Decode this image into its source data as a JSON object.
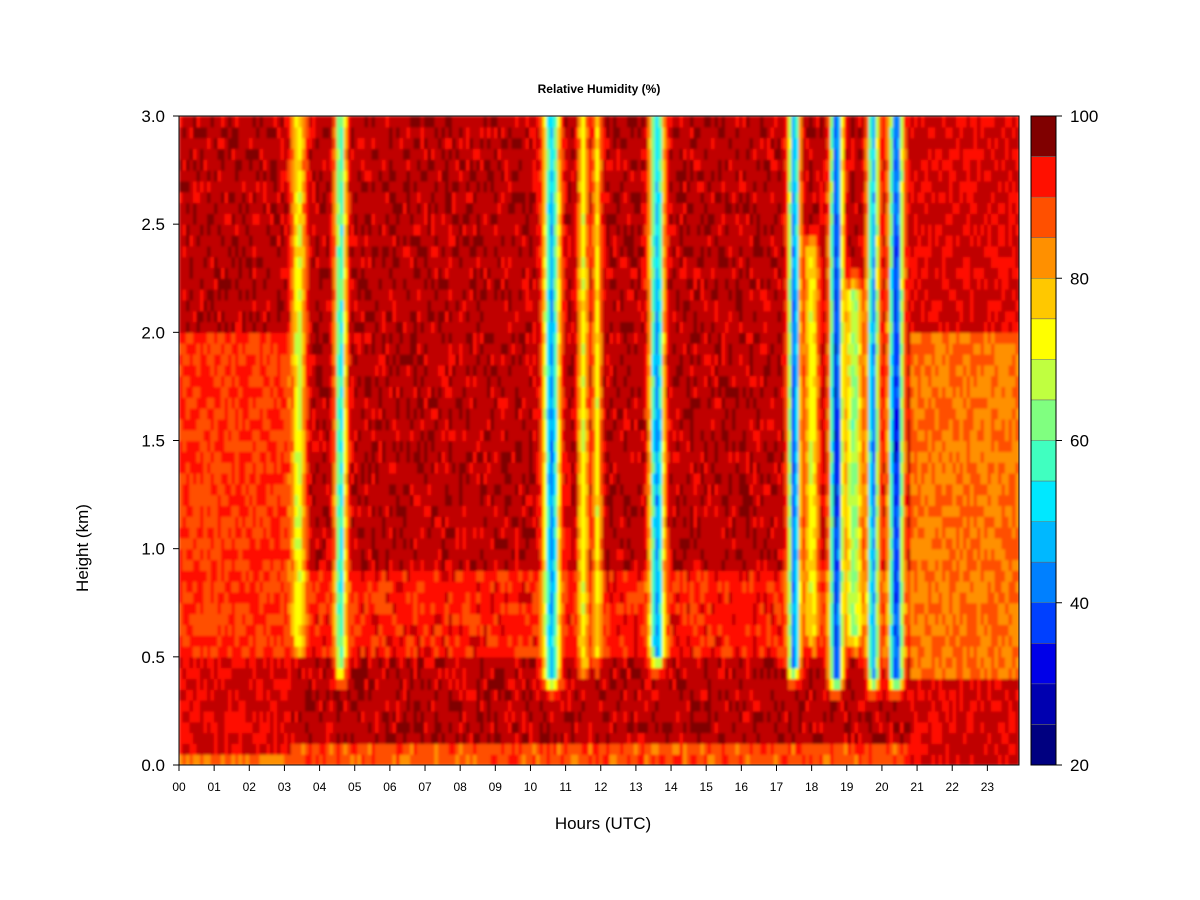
{
  "chart_data": {
    "type": "heatmap",
    "title": "Relative Humidity (%)",
    "xlabel": "Hours (UTC)",
    "ylabel": "Height (km)",
    "xlim": [
      0,
      23.9
    ],
    "ylim": [
      0.0,
      3.0
    ],
    "x_ticks": [
      "00",
      "01",
      "02",
      "03",
      "04",
      "05",
      "06",
      "07",
      "08",
      "09",
      "10",
      "11",
      "12",
      "13",
      "14",
      "15",
      "16",
      "17",
      "18",
      "19",
      "20",
      "21",
      "22",
      "23"
    ],
    "y_ticks": [
      "0.0",
      "0.5",
      "1.0",
      "1.5",
      "2.0",
      "2.5",
      "3.0"
    ],
    "colorbar": {
      "min": 20,
      "max": 100,
      "step": 5,
      "tick_labels": [
        "20",
        "40",
        "60",
        "80",
        "100"
      ],
      "colors": [
        "#000080",
        "#0000b0",
        "#0000e8",
        "#0040ff",
        "#0080ff",
        "#00b8ff",
        "#00e8ff",
        "#40ffc0",
        "#80ff80",
        "#c0ff40",
        "#ffff00",
        "#ffc800",
        "#ff9000",
        "#ff5000",
        "#ff1000",
        "#c00000",
        "#800000"
      ]
    },
    "background_profile": {
      "early_hours": {
        "span": [
          0,
          3.2
        ],
        "layers": [
          {
            "h": [
              0,
              0.05
            ],
            "rh": 85
          },
          {
            "h": [
              0.05,
              0.5
            ],
            "rh": 95
          },
          {
            "h": [
              0.5,
              2.0
            ],
            "rh": 90
          },
          {
            "h": [
              2.0,
              3.0
            ],
            "rh": 98
          }
        ]
      },
      "mid_day": {
        "span": [
          4.6,
          17.2
        ],
        "layers": [
          {
            "h": [
              0,
              0.08
            ],
            "rh": 88
          },
          {
            "h": [
              0.08,
              0.5
            ],
            "rh": 98
          },
          {
            "h": [
              0.5,
              0.9
            ],
            "rh": 92
          },
          {
            "h": [
              0.9,
              3.0
            ],
            "rh": 98
          }
        ]
      },
      "late_hours": {
        "span": [
          20.8,
          23.9
        ],
        "layers": [
          {
            "h": [
              0,
              0.4
            ],
            "rh": 96
          },
          {
            "h": [
              0.4,
              2.0
            ],
            "rh": 85
          },
          {
            "h": [
              2.0,
              3.0
            ],
            "rh": 96
          }
        ]
      }
    },
    "dry_bands": [
      {
        "center_hour": 3.4,
        "width_hours": 0.25,
        "min_rh": 68,
        "from_km": 0.45,
        "to_km": 3.0
      },
      {
        "center_hour": 4.6,
        "width_hours": 0.2,
        "min_rh": 52,
        "from_km": 0.35,
        "to_km": 3.0
      },
      {
        "center_hour": 10.6,
        "width_hours": 0.28,
        "min_rh": 42,
        "from_km": 0.3,
        "to_km": 3.0
      },
      {
        "center_hour": 11.5,
        "width_hours": 0.18,
        "min_rh": 70,
        "from_km": 0.35,
        "to_km": 3.0
      },
      {
        "center_hour": 11.9,
        "width_hours": 0.15,
        "min_rh": 72,
        "from_km": 0.4,
        "to_km": 3.0
      },
      {
        "center_hour": 13.6,
        "width_hours": 0.25,
        "min_rh": 42,
        "from_km": 0.4,
        "to_km": 3.0
      },
      {
        "center_hour": 17.5,
        "width_hours": 0.2,
        "min_rh": 35,
        "from_km": 0.35,
        "to_km": 3.0
      },
      {
        "center_hour": 18.0,
        "width_hours": 0.25,
        "min_rh": 70,
        "from_km": 0.5,
        "to_km": 2.5
      },
      {
        "center_hour": 18.7,
        "width_hours": 0.22,
        "min_rh": 28,
        "from_km": 0.3,
        "to_km": 3.0
      },
      {
        "center_hour": 19.2,
        "width_hours": 0.3,
        "min_rh": 62,
        "from_km": 0.5,
        "to_km": 2.3
      },
      {
        "center_hour": 19.75,
        "width_hours": 0.2,
        "min_rh": 40,
        "from_km": 0.3,
        "to_km": 3.0
      },
      {
        "center_hour": 20.4,
        "width_hours": 0.25,
        "min_rh": 30,
        "from_km": 0.3,
        "to_km": 3.0
      }
    ]
  }
}
